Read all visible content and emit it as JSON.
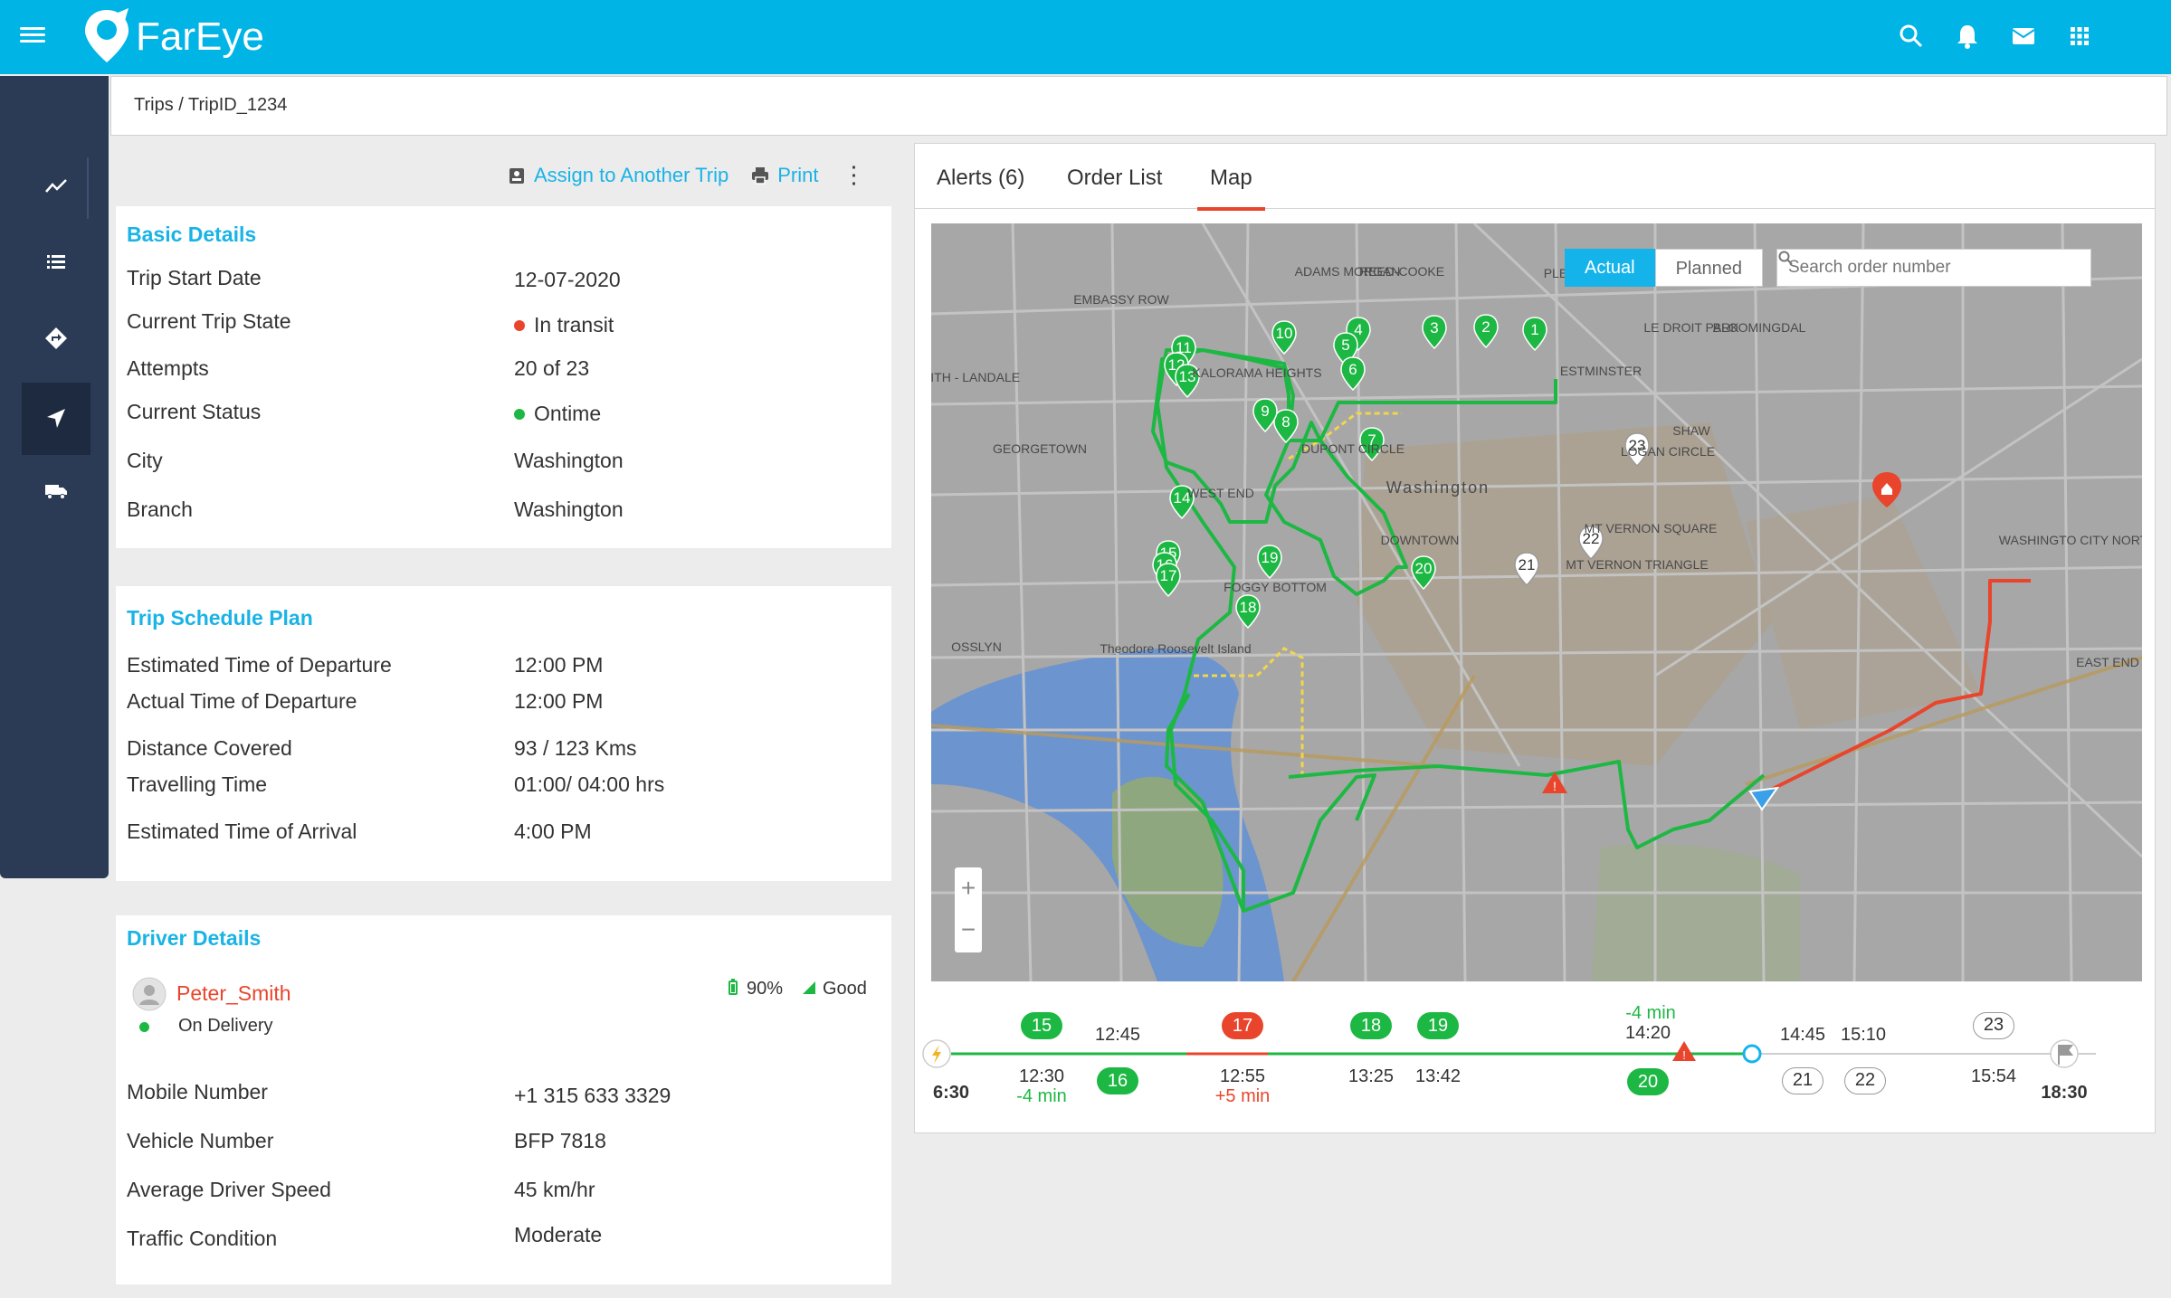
{
  "app": {
    "brand": "FarEye"
  },
  "breadcrumb": "Trips / TripID_1234",
  "actions": {
    "assign": "Assign to Another Trip",
    "print": "Print"
  },
  "basic": {
    "title": "Basic Details",
    "rows": [
      {
        "label": "Trip Start Date",
        "value": "12-07-2020"
      },
      {
        "label": "Current Trip State",
        "value": "In transit"
      },
      {
        "label": "Attempts",
        "value": "20 of 23"
      },
      {
        "label": "Current Status",
        "value": "Ontime"
      },
      {
        "label": "City",
        "value": "Washington"
      },
      {
        "label": "Branch",
        "value": "Washington"
      }
    ]
  },
  "schedule": {
    "title": "Trip Schedule Plan",
    "rows": [
      {
        "label": "Estimated Time of Departure",
        "value": "12:00 PM"
      },
      {
        "label": "Actual Time of Departure",
        "value": "12:00 PM"
      },
      {
        "label": "Distance Covered",
        "value": "93 / 123 Kms"
      },
      {
        "label": "Travelling Time",
        "value": "01:00/ 04:00 hrs"
      },
      {
        "label": "Estimated Time of Arrival",
        "value": "4:00 PM"
      }
    ]
  },
  "driver": {
    "title": "Driver Details",
    "name": "Peter_Smith",
    "status": "On Delivery",
    "battery": "90%",
    "signal": "Good",
    "rows": [
      {
        "label": "Mobile Number",
        "value": "+1 315 633 3329"
      },
      {
        "label": "Vehicle Number",
        "value": "BFP 7818"
      },
      {
        "label": "Average Driver Speed",
        "value": "45 km/hr"
      },
      {
        "label": "Traffic Condition",
        "value": "Moderate"
      }
    ]
  },
  "tabs": [
    "Alerts (6)",
    "Order List",
    "Map"
  ],
  "map": {
    "toggle_actual": "Actual",
    "toggle_planned": "Planned",
    "search_placeholder": "Search order number",
    "zoom_in": "+",
    "zoom_out": "−",
    "labels": [
      "ADAMS MORGAN",
      "REED-COOKE",
      "PLEASANT PLAINS",
      "EMBASSY ROW",
      "LE DROIT PARK",
      "BLOOMINGDAL",
      "KALORAMA HEIGHTS",
      "URLEITH - LANDALE",
      "ESTMINSTER",
      "SHAW",
      "GEORGETOWN",
      "DUPONT CIRCLE",
      "LOGAN CIRCLE",
      "Washington",
      "WEST END",
      "MT VERNON SQUARE",
      "DOWNTOWN",
      "MT VERNON TRIANGLE",
      "WASHINGTO CITY NORT CAPITOL S",
      "FOGGY BOTTOM",
      "OSSLYN",
      "Theodore Roosevelt Island",
      "EAST END"
    ],
    "stops": [
      "1",
      "2",
      "3",
      "4",
      "5",
      "6",
      "7",
      "8",
      "9",
      "10",
      "11",
      "12",
      "13",
      "14",
      "15",
      "16",
      "17",
      "18",
      "19",
      "20",
      "21",
      "22",
      "23"
    ]
  },
  "timeline": {
    "start": "6:30",
    "end": "18:30",
    "items": [
      {
        "stop": "15",
        "time": "12:30",
        "delta": "-4 min"
      },
      {
        "stop": "16",
        "time": "12:45"
      },
      {
        "stop": "17",
        "time": "12:55",
        "delta": "+5 min"
      },
      {
        "stop": "18",
        "time": "13:25"
      },
      {
        "stop": "19",
        "time": "13:42"
      },
      {
        "stop": "20",
        "time": "14:20",
        "delta": "-4 min"
      },
      {
        "stop": "21",
        "time": "14:45"
      },
      {
        "stop": "22",
        "time": "15:10"
      },
      {
        "stop": "23",
        "time": "15:54"
      }
    ]
  },
  "colors": {
    "accent": "#00b4e6",
    "route": "#1db843",
    "delay": "#e8452c",
    "sidebar": "#2b3b55"
  }
}
